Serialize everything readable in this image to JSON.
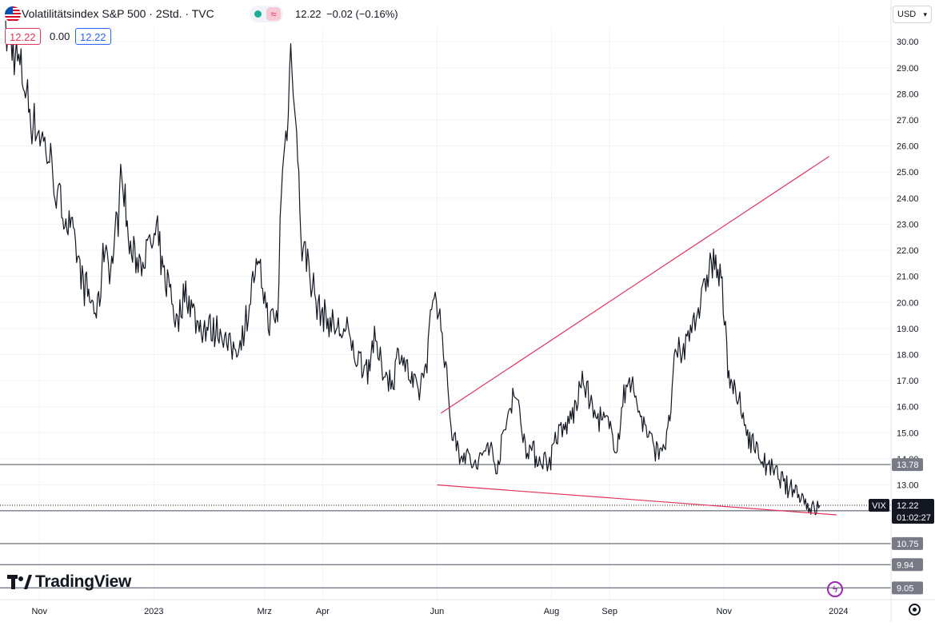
{
  "header": {
    "title": "Volatilitätsindex S&P 500 · 2Std. · TVC",
    "last_value": "12.22",
    "change": "−0.02 (−0.16%)",
    "open_box": "12.22",
    "spread": "0.00",
    "close_box": "12.22",
    "currency": "USD"
  },
  "brand": {
    "name": "TradingView"
  },
  "colors": {
    "price_line": "#131722",
    "trendline": "#e0335b",
    "level_line": "#787b86",
    "grid": "#f0f3fa"
  },
  "icons": [
    "us-flag-icon",
    "market-status-dot-icon",
    "wave-icon",
    "chevron-down-icon",
    "flash-icon",
    "settings-gear-icon"
  ],
  "chart_data": {
    "type": "line",
    "symbol": "VIX",
    "price_tag": "12.22",
    "countdown": "01:02:27",
    "ylim": [
      8.6,
      31.6
    ],
    "yticks": [
      "13.00",
      "14.00",
      "15.00",
      "16.00",
      "17.00",
      "18.00",
      "19.00",
      "20.00",
      "21.00",
      "22.00",
      "23.00",
      "24.00",
      "25.00",
      "26.00",
      "27.00",
      "28.00",
      "29.00",
      "30.00"
    ],
    "xticks": [
      {
        "label": "Nov",
        "date": "2022-11-01"
      },
      {
        "label": "2023",
        "date": "2023-01-01"
      },
      {
        "label": "Mrz",
        "date": "2023-03-01"
      },
      {
        "label": "Apr",
        "date": "2023-04-01"
      },
      {
        "label": "Jun",
        "date": "2023-06-01"
      },
      {
        "label": "Aug",
        "date": "2023-08-01"
      },
      {
        "label": "Sep",
        "date": "2023-09-01"
      },
      {
        "label": "Nov",
        "date": "2023-11-01"
      },
      {
        "label": "2024",
        "date": "2024-01-01"
      }
    ],
    "levels": [
      {
        "value": 13.78,
        "label": "13.78"
      },
      {
        "value": 12.01,
        "label": "12.01"
      },
      {
        "value": 10.75,
        "label": "10.75"
      },
      {
        "value": 9.94,
        "label": "9.94"
      },
      {
        "value": 9.05,
        "label": "9.05"
      }
    ],
    "last_price": 12.22,
    "series": [
      {
        "x": [
          "2022-10-14",
          "2022-10-18",
          "2022-10-24",
          "2022-10-28",
          "2022-11-02",
          "2022-11-07",
          "2022-11-10",
          "2022-11-14",
          "2022-11-18",
          "2022-11-22",
          "2022-11-25",
          "2022-11-29",
          "2022-12-02",
          "2022-12-06",
          "2022-12-09",
          "2022-12-13",
          "2022-12-15",
          "2022-12-19",
          "2022-12-23",
          "2022-12-28",
          "2023-01-03",
          "2023-01-06",
          "2023-01-10",
          "2023-01-13",
          "2023-01-18",
          "2023-01-24",
          "2023-01-31",
          "2023-02-06",
          "2023-02-10",
          "2023-02-16",
          "2023-02-21",
          "2023-02-24",
          "2023-02-28",
          "2023-03-03",
          "2023-03-08",
          "2023-03-10",
          "2023-03-13",
          "2023-03-15",
          "2023-03-17",
          "2023-03-21",
          "2023-03-24",
          "2023-03-29",
          "2023-04-05",
          "2023-04-10",
          "2023-04-14",
          "2023-04-19",
          "2023-04-25",
          "2023-04-28",
          "2023-05-03",
          "2023-05-08",
          "2023-05-12",
          "2023-05-18",
          "2023-05-22",
          "2023-05-26",
          "2023-05-31",
          "2023-06-05",
          "2023-06-09",
          "2023-06-13",
          "2023-06-16",
          "2023-06-22",
          "2023-06-28",
          "2023-07-03",
          "2023-07-07",
          "2023-07-12",
          "2023-07-18",
          "2023-07-25",
          "2023-07-31",
          "2023-08-03",
          "2023-08-08",
          "2023-08-14",
          "2023-08-18",
          "2023-08-24",
          "2023-08-30",
          "2023-09-05",
          "2023-09-11",
          "2023-09-15",
          "2023-09-21",
          "2023-09-26",
          "2023-10-02",
          "2023-10-06",
          "2023-10-11",
          "2023-10-16",
          "2023-10-20",
          "2023-10-24",
          "2023-10-27",
          "2023-10-31",
          "2023-11-03",
          "2023-11-07",
          "2023-11-13",
          "2023-11-17",
          "2023-11-22",
          "2023-11-27",
          "2023-12-01",
          "2023-12-05",
          "2023-12-08",
          "2023-12-12",
          "2023-12-15",
          "2023-12-19",
          "2023-12-22"
        ],
        "values": [
          30.2,
          29.8,
          28.4,
          27.0,
          26.4,
          25.4,
          24.2,
          23.4,
          22.8,
          21.5,
          20.6,
          20.0,
          19.5,
          22.4,
          21.2,
          23.4,
          25.2,
          22.0,
          21.6,
          21.9,
          22.5,
          21.0,
          20.6,
          19.1,
          20.5,
          19.2,
          19.0,
          18.9,
          18.2,
          18.4,
          20.0,
          21.3,
          20.8,
          19.2,
          19.4,
          24.5,
          26.8,
          29.6,
          28.1,
          22.0,
          21.7,
          19.8,
          19.2,
          18.9,
          18.8,
          17.9,
          17.5,
          18.5,
          17.5,
          16.9,
          18.2,
          17.0,
          16.5,
          17.6,
          20.6,
          18.0,
          15.0,
          14.3,
          14.2,
          13.6,
          14.6,
          13.7,
          15.0,
          16.8,
          14.6,
          14.0,
          13.9,
          14.8,
          15.1,
          16.0,
          17.1,
          15.6,
          15.4,
          14.5,
          17.4,
          16.2,
          15.0,
          14.3,
          14.8,
          17.9,
          18.2,
          19.5,
          20.0,
          21.4,
          21.6,
          20.4,
          17.6,
          16.5,
          15.1,
          14.5,
          13.9,
          13.5,
          13.2,
          12.8,
          12.9,
          12.6,
          12.3,
          12.0,
          12.22
        ]
      }
    ],
    "trendlines": [
      {
        "from": {
          "date": "2023-06-03",
          "value": 15.75
        },
        "to": {
          "date": "2023-12-27",
          "value": 25.6
        }
      },
      {
        "from": {
          "date": "2023-06-01",
          "value": 13.0
        },
        "to": {
          "date": "2023-12-31",
          "value": 11.85
        }
      }
    ]
  }
}
